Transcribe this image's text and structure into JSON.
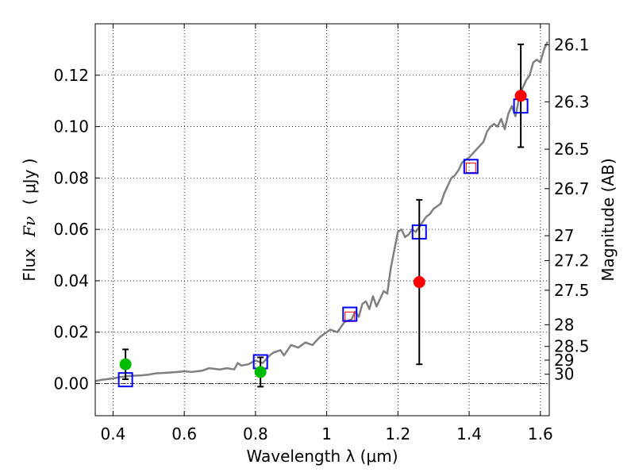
{
  "chart_data": {
    "type": "scatter",
    "xlabel": "Wavelength  λ (μm)",
    "ylabel_prefix": "Flux",
    "ylabel_symbol": "Fν",
    "ylabel_units": "( μJy )",
    "y2label": "Magnitude (AB)",
    "xlim": [
      0.35,
      1.625
    ],
    "ylim": [
      -0.0125,
      0.14
    ],
    "grid": true,
    "x_ticks": [
      {
        "value": 0.4,
        "label": "0.4"
      },
      {
        "value": 0.6,
        "label": "0.6"
      },
      {
        "value": 0.8,
        "label": "0.8"
      },
      {
        "value": 1.0,
        "label": "1"
      },
      {
        "value": 1.2,
        "label": "1.2"
      },
      {
        "value": 1.4,
        "label": "1.4"
      },
      {
        "value": 1.6,
        "label": "1.6"
      }
    ],
    "y_ticks": [
      {
        "value": 0.0,
        "label": "0.00"
      },
      {
        "value": 0.02,
        "label": "0.02"
      },
      {
        "value": 0.04,
        "label": "0.04"
      },
      {
        "value": 0.06,
        "label": "0.06"
      },
      {
        "value": 0.08,
        "label": "0.08"
      },
      {
        "value": 0.1,
        "label": "0.10"
      },
      {
        "value": 0.12,
        "label": "0.12"
      }
    ],
    "y2_ticks": [
      {
        "magnitude": 26.1,
        "label": "26.1"
      },
      {
        "magnitude": 26.3,
        "label": "26.3"
      },
      {
        "magnitude": 26.5,
        "label": "26.5"
      },
      {
        "magnitude": 26.7,
        "label": "26.7"
      },
      {
        "magnitude": 27,
        "label": "27"
      },
      {
        "magnitude": 27.2,
        "label": "27.2"
      },
      {
        "magnitude": 27.5,
        "label": "27.5"
      },
      {
        "magnitude": 28,
        "label": "28"
      },
      {
        "magnitude": 28.5,
        "label": "28.5"
      },
      {
        "magnitude": 29,
        "label": "29"
      },
      {
        "magnitude": 30,
        "label": "30"
      }
    ],
    "model_spectrum": {
      "color": "#808080",
      "x": [
        0.35,
        0.37,
        0.4,
        0.42,
        0.45,
        0.48,
        0.5,
        0.52,
        0.55,
        0.58,
        0.6,
        0.62,
        0.65,
        0.67,
        0.7,
        0.72,
        0.74,
        0.75,
        0.76,
        0.78,
        0.8,
        0.82,
        0.84,
        0.85,
        0.87,
        0.88,
        0.9,
        0.92,
        0.94,
        0.96,
        0.98,
        1.0,
        1.01,
        1.03,
        1.05,
        1.07,
        1.08,
        1.09,
        1.1,
        1.11,
        1.12,
        1.13,
        1.14,
        1.15,
        1.16,
        1.17,
        1.18,
        1.19,
        1.2,
        1.21,
        1.22,
        1.23,
        1.24,
        1.25,
        1.26,
        1.27,
        1.28,
        1.29,
        1.3,
        1.31,
        1.32,
        1.33,
        1.34,
        1.35,
        1.36,
        1.37,
        1.38,
        1.4,
        1.42,
        1.44,
        1.45,
        1.46,
        1.47,
        1.48,
        1.49,
        1.5,
        1.51,
        1.52,
        1.53,
        1.54,
        1.55,
        1.56,
        1.57,
        1.58,
        1.59,
        1.6,
        1.61,
        1.62
      ],
      "y": [
        0.001,
        0.0015,
        0.002,
        0.0025,
        0.003,
        0.0032,
        0.0035,
        0.004,
        0.0042,
        0.0045,
        0.0048,
        0.0045,
        0.005,
        0.006,
        0.0055,
        0.006,
        0.0055,
        0.008,
        0.007,
        0.0075,
        0.009,
        0.008,
        0.011,
        0.012,
        0.013,
        0.011,
        0.015,
        0.014,
        0.016,
        0.015,
        0.018,
        0.02,
        0.021,
        0.02,
        0.024,
        0.025,
        0.028,
        0.026,
        0.031,
        0.032,
        0.029,
        0.034,
        0.03,
        0.033,
        0.036,
        0.035,
        0.045,
        0.052,
        0.059,
        0.06,
        0.057,
        0.058,
        0.06,
        0.059,
        0.061,
        0.063,
        0.065,
        0.066,
        0.068,
        0.069,
        0.07,
        0.074,
        0.077,
        0.08,
        0.081,
        0.083,
        0.086,
        0.088,
        0.091,
        0.094,
        0.098,
        0.1,
        0.101,
        0.1,
        0.103,
        0.099,
        0.105,
        0.108,
        0.104,
        0.111,
        0.115,
        0.118,
        0.12,
        0.125,
        0.126,
        0.125,
        0.13,
        0.133
      ]
    },
    "series": [
      {
        "marker": "square",
        "color": "#0000ff",
        "x": [
          0.435,
          0.814,
          1.065,
          1.26,
          1.405,
          1.545
        ],
        "values": [
          0.0015,
          0.0085,
          0.027,
          0.059,
          0.0845,
          0.108
        ]
      },
      {
        "marker": "circle",
        "color": "#00bb00",
        "x": [
          0.435,
          0.814
        ],
        "values": [
          0.0075,
          0.0045
        ],
        "err": [
          0.0058,
          0.0057
        ]
      },
      {
        "marker": "circle",
        "color": "#ff0000",
        "x": [
          1.26,
          1.545
        ],
        "values": [
          0.0395,
          0.112
        ],
        "err": [
          0.032,
          0.02
        ]
      }
    ],
    "small_red_squares": {
      "color": "#ff0000",
      "x": [
        1.065,
        1.405
      ],
      "values": [
        0.026,
        0.084
      ]
    }
  }
}
